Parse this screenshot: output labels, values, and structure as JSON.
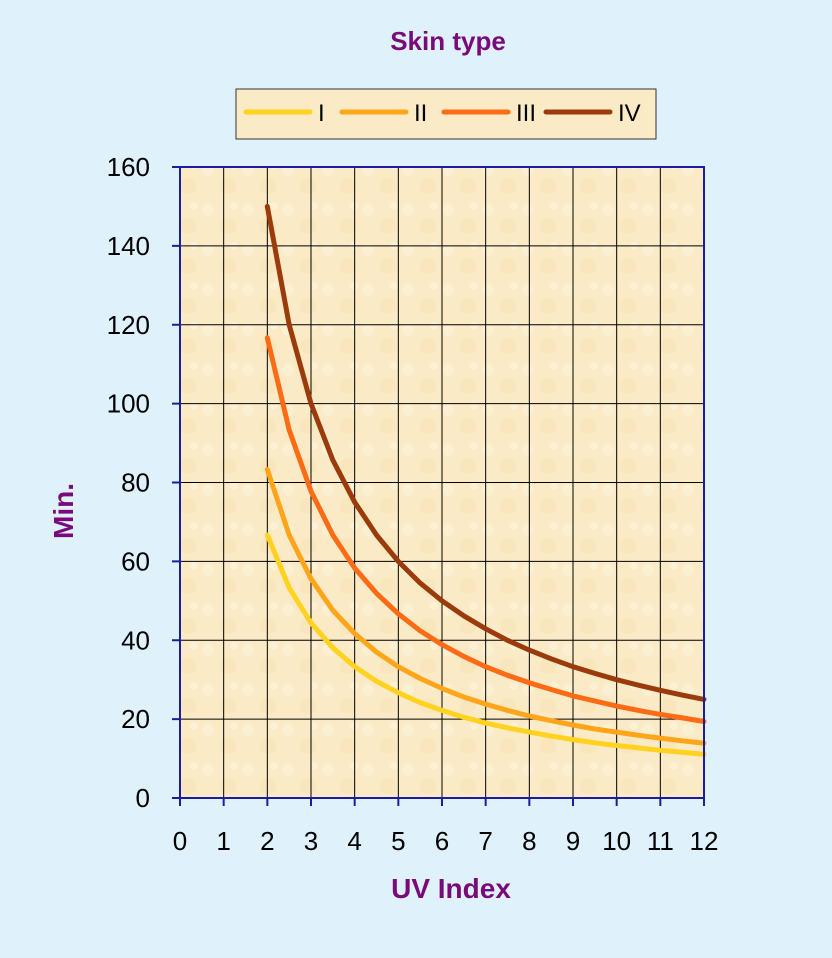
{
  "chart_data": {
    "type": "line",
    "title": "Skin type",
    "xlabel": "UV Index",
    "ylabel": "Min.",
    "xlim": [
      0,
      12
    ],
    "ylim": [
      0,
      160
    ],
    "x_ticks": [
      "0",
      "1",
      "2",
      "3",
      "4",
      "5",
      "6",
      "7",
      "8",
      "9",
      "10",
      "11",
      "12"
    ],
    "y_ticks": [
      "0",
      "20",
      "40",
      "60",
      "80",
      "100",
      "120",
      "140",
      "160"
    ],
    "grid": true,
    "legend_position": "top",
    "x": [
      2,
      2.5,
      3,
      3.5,
      4,
      4.5,
      5,
      5.5,
      6,
      6.5,
      7,
      7.5,
      8,
      8.5,
      9,
      9.5,
      10,
      10.5,
      11,
      11.5,
      12
    ],
    "series": [
      {
        "name": "I",
        "color": "#ffd21f",
        "values": [
          66.7,
          53.3,
          44.4,
          38.1,
          33.3,
          29.6,
          26.7,
          24.2,
          22.2,
          20.5,
          19.0,
          17.8,
          16.7,
          15.7,
          14.8,
          14.0,
          13.3,
          12.7,
          12.1,
          11.6,
          11.1
        ]
      },
      {
        "name": "II",
        "color": "#ffa51a",
        "values": [
          83.3,
          66.7,
          55.6,
          47.6,
          41.7,
          37.0,
          33.3,
          30.3,
          27.8,
          25.6,
          23.8,
          22.2,
          20.8,
          19.6,
          18.5,
          17.5,
          16.7,
          15.9,
          15.2,
          14.5,
          13.9
        ]
      },
      {
        "name": "III",
        "color": "#ff6a14",
        "values": [
          116.7,
          93.3,
          77.8,
          66.7,
          58.3,
          51.9,
          46.7,
          42.4,
          38.9,
          35.9,
          33.3,
          31.1,
          29.2,
          27.5,
          25.9,
          24.6,
          23.3,
          22.2,
          21.2,
          20.3,
          19.4
        ]
      },
      {
        "name": "IV",
        "color": "#9b3a0a",
        "values": [
          150.0,
          120.0,
          100.0,
          85.7,
          75.0,
          66.7,
          60.0,
          54.5,
          50.0,
          46.2,
          42.9,
          40.0,
          37.5,
          35.3,
          33.3,
          31.6,
          30.0,
          28.6,
          27.3,
          26.1,
          25.0
        ]
      }
    ],
    "colors": {
      "background": "#dff1fb",
      "plot_area": "#fbeac6",
      "axis": "#1c1ca0",
      "grid": "#000000",
      "title": "#7a0a7a",
      "highlight_tick": "#1a1a8a"
    }
  }
}
